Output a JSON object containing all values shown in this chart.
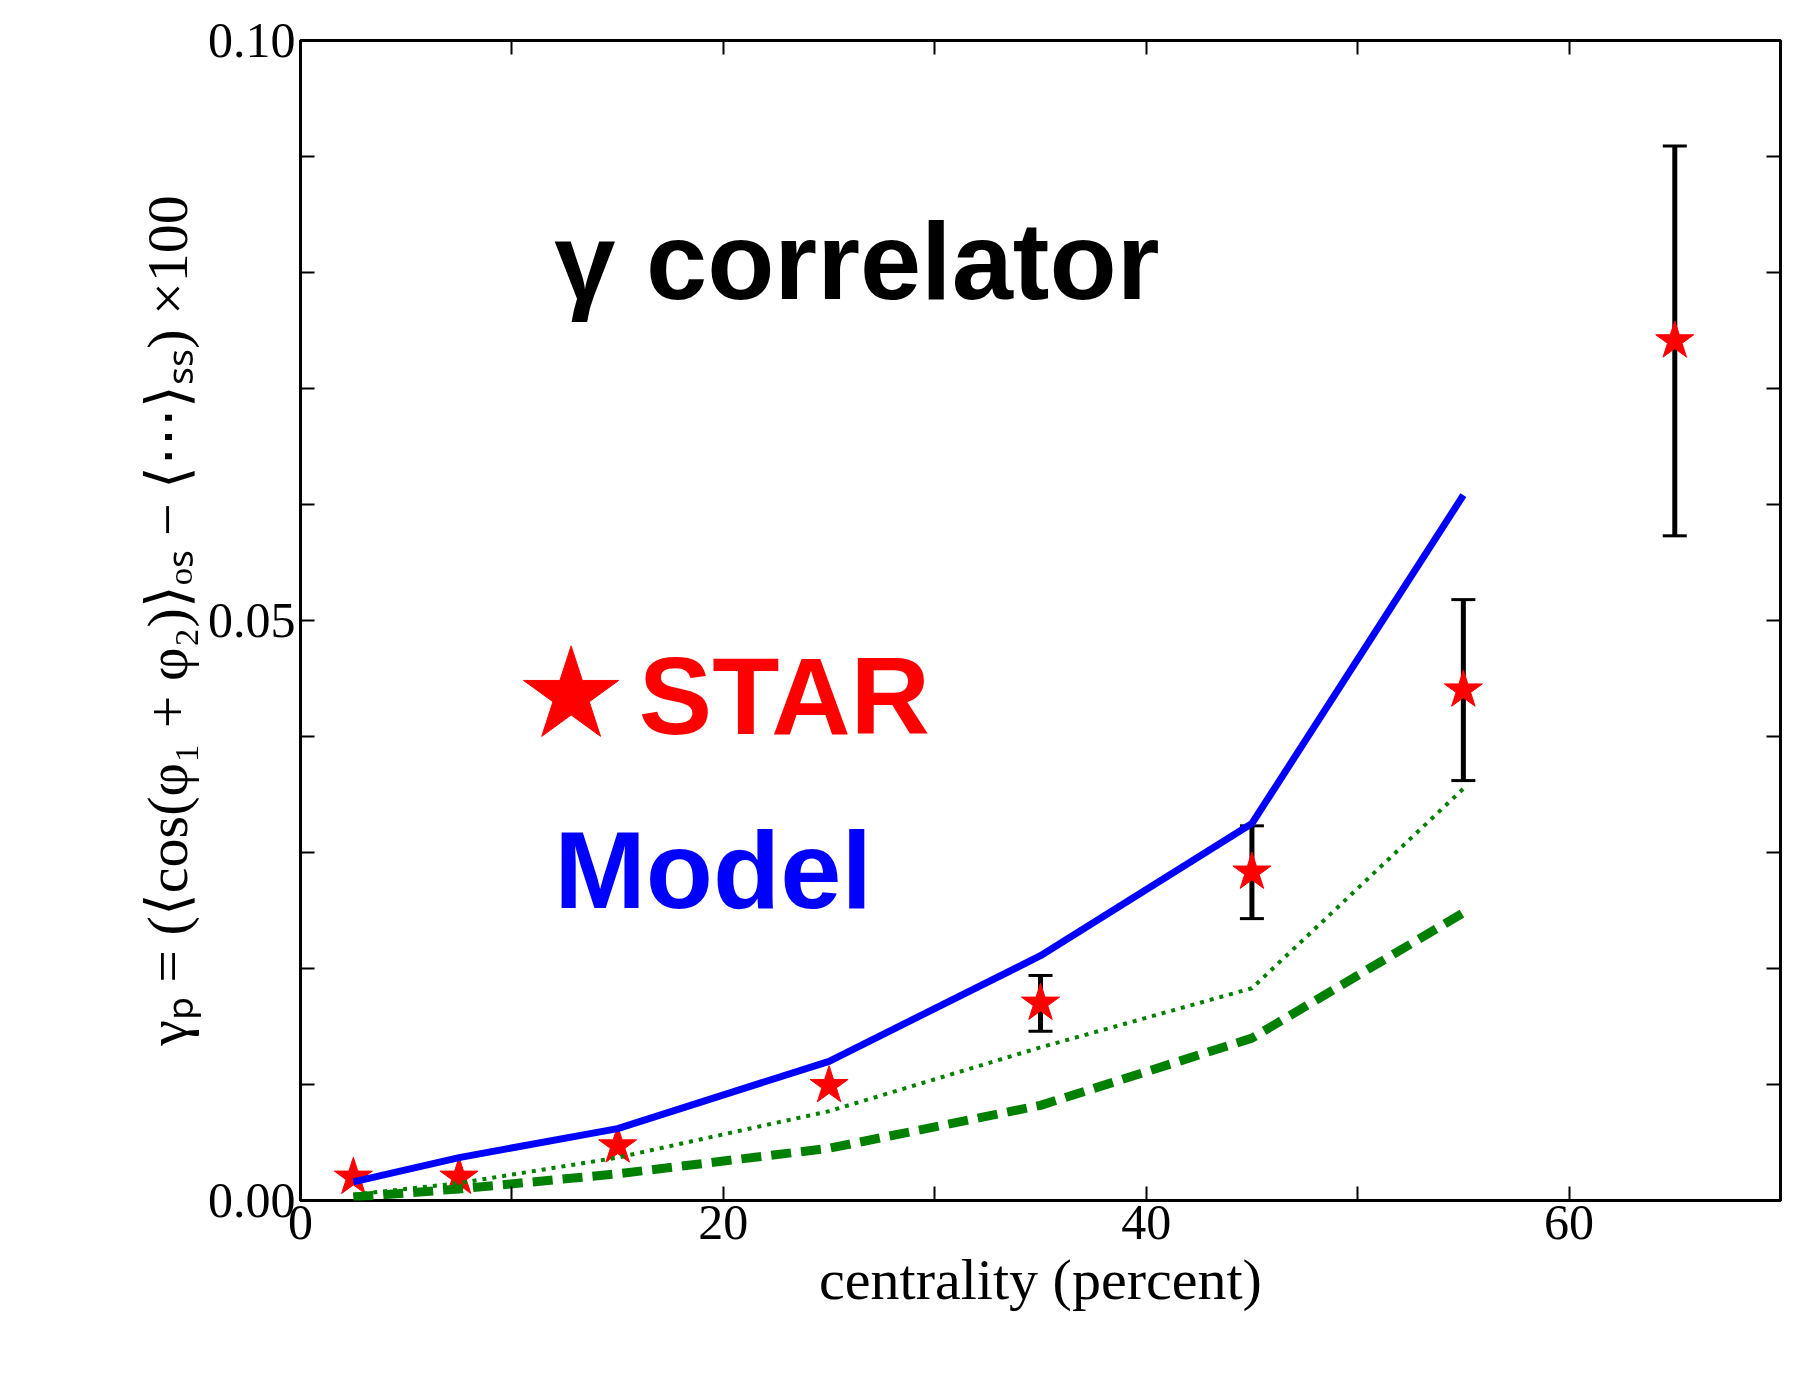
{
  "chart_data": {
    "type": "line",
    "xlabel": "centrality (percent)",
    "ylabel": "γₚ = (⟨cos(φ₁ + φ₂)⟩ₒₛ − ⟨⋯⟩ₛₛ) ×100",
    "annotations": [
      "γ correlator"
    ],
    "xlim": [
      0,
      70
    ],
    "ylim": [
      0,
      0.1
    ],
    "xticks": [
      0,
      {
        "value": 10,
        "label": null
      },
      20,
      {
        "value": 30,
        "label": null
      },
      40,
      {
        "value": 50,
        "label": null
      },
      60,
      {
        "value": 70,
        "label": null
      }
    ],
    "yticks": [
      {
        "value": 0,
        "label": "0.00"
      },
      {
        "value": 0.01,
        "label": null
      },
      {
        "value": 0.02,
        "label": null
      },
      {
        "value": 0.03,
        "label": null
      },
      {
        "value": 0.04,
        "label": null
      },
      {
        "value": 0.05,
        "label": "0.05"
      },
      {
        "value": 0.06,
        "label": null
      },
      {
        "value": 0.07,
        "label": null
      },
      {
        "value": 0.08,
        "label": null
      },
      {
        "value": 0.09,
        "label": null
      },
      {
        "value": 0.1,
        "label": "0.10"
      }
    ],
    "grid": false,
    "legend": "left",
    "series": [
      {
        "name": "Model",
        "color": "#0000ff",
        "line_style": "solid",
        "x": [
          2.5,
          7.5,
          15,
          25,
          35,
          45,
          55
        ],
        "values": [
          0.0016,
          0.0037,
          0.0062,
          0.012,
          0.0211,
          0.0325,
          0.0608
        ]
      },
      {
        "color": "#008000",
        "line_style": "dotted",
        "x": [
          2.5,
          7.5,
          15,
          25,
          35,
          45,
          55
        ],
        "values": [
          0.0005,
          0.0015,
          0.0037,
          0.0077,
          0.0132,
          0.0183,
          0.0355
        ]
      },
      {
        "color": "#008000",
        "line_style": "dashed",
        "x": [
          2.5,
          7.5,
          15,
          25,
          35,
          45,
          55
        ],
        "values": [
          0.0003,
          0.001,
          0.0023,
          0.0045,
          0.0082,
          0.014,
          0.0248
        ]
      },
      {
        "name": "STAR",
        "type": "scatter",
        "marker": "star",
        "color": "#ff0000",
        "x": [
          2.5,
          7.5,
          15,
          25,
          35,
          45,
          55,
          65
        ],
        "values": [
          0.002,
          0.002,
          0.0047,
          0.0099,
          0.017,
          0.0283,
          0.044,
          0.0741
        ],
        "errors": [
          null,
          null,
          null,
          null,
          0.0024,
          0.004,
          0.0078,
          0.0168
        ]
      }
    ]
  }
}
